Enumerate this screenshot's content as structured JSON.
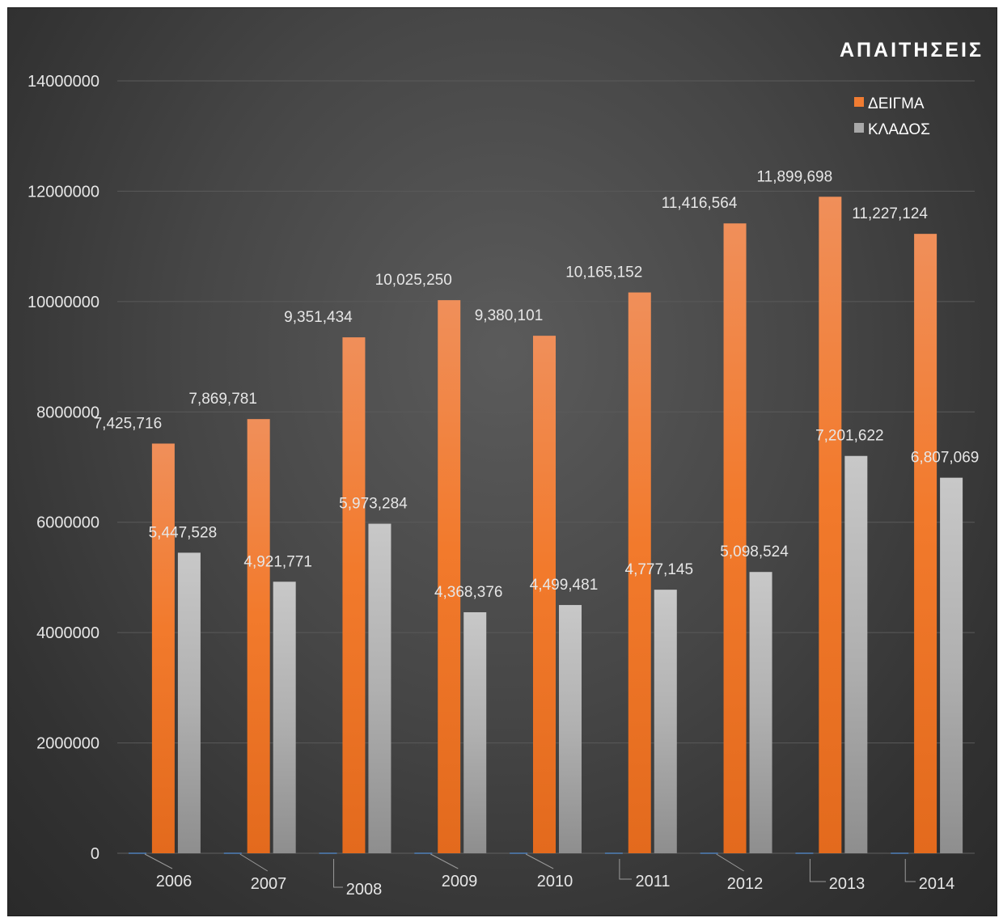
{
  "chart_data": {
    "type": "bar",
    "title": "ΑΠΑΙΤΗΣΕΙΣ",
    "categories": [
      "2006",
      "2007",
      "2008",
      "2009",
      "2010",
      "2011",
      "2012",
      "2013",
      "2014"
    ],
    "series": [
      {
        "name": "ΔΕΙΓΜΑ",
        "color": "#f07c32",
        "values": [
          7425716,
          7869781,
          9351434,
          10025250,
          9380101,
          10165152,
          11416564,
          11899698,
          11227124
        ],
        "labels": [
          "7,425,716",
          "7,869,781",
          "9,351,434",
          "10,025,250",
          "9,380,101",
          "10,165,152",
          "11,416,564",
          "11,899,698",
          "11,227,124"
        ]
      },
      {
        "name": "ΚΛΑΔΟΣ",
        "color": "#a8a8a8",
        "values": [
          5447528,
          4921771,
          5973284,
          4368376,
          4499481,
          4777145,
          5098524,
          7201622,
          6807069
        ],
        "labels": [
          "5,447,528",
          "4,921,771",
          "5,973,284",
          "4,368,376",
          "4,499,481",
          "4,777,145",
          "5,098,524",
          "7,201,622",
          "6,807,069"
        ]
      }
    ],
    "y_ticks": [
      "0",
      "2000000",
      "4000000",
      "6000000",
      "8000000",
      "10000000",
      "12000000",
      "14000000"
    ],
    "ylim": [
      0,
      14000000
    ],
    "xlabel": "",
    "ylabel": "",
    "grid": true,
    "legend_position": "top-right"
  }
}
